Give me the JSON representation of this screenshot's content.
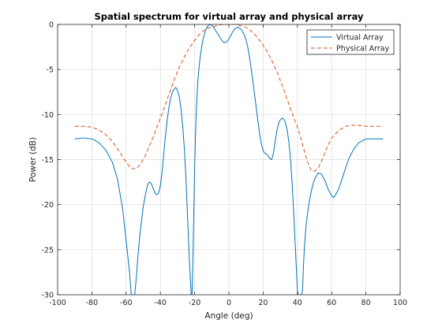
{
  "chart_data": {
    "type": "line",
    "title": "Spatial spectrum for virtual array and physical array",
    "xlabel": "Angle (deg)",
    "ylabel": "Power (dB)",
    "xlim": [
      -100,
      100
    ],
    "ylim": [
      -30,
      0
    ],
    "xticks": [
      -100,
      -80,
      -60,
      -40,
      -20,
      0,
      20,
      40,
      60,
      80,
      100
    ],
    "xtick_labels": [
      "-100",
      "-80",
      "-60",
      "-40",
      "-20",
      "0",
      "20",
      "40",
      "60",
      "80",
      "100"
    ],
    "yticks": [
      -30,
      -25,
      -20,
      -15,
      -10,
      -5,
      0
    ],
    "ytick_labels": [
      "-30",
      "-25",
      "-20",
      "-15",
      "-10",
      "-5",
      "0"
    ],
    "grid": true,
    "legend_position": "top-right",
    "series": [
      {
        "name": "Virtual Array",
        "color": "#0072bd",
        "style": "solid",
        "x": [
          -90,
          -85,
          -80,
          -76,
          -72,
          -68,
          -65,
          -62,
          -60,
          -58,
          -57,
          -56.5,
          -55.5,
          -55,
          -54,
          -53,
          -52,
          -50,
          -48,
          -47,
          -46,
          -45,
          -44,
          -43,
          -42,
          -41,
          -40,
          -39,
          -38,
          -37,
          -36,
          -35,
          -34,
          -33,
          -32,
          -31,
          -30,
          -29,
          -28,
          -27,
          -26,
          -25,
          -24,
          -23,
          -22,
          -21.5,
          -21,
          -20.5,
          -20,
          -19.5,
          -19,
          -18.5,
          -18,
          -17,
          -16,
          -15,
          -14,
          -13,
          -12,
          -11,
          -10,
          -9,
          -8,
          -7,
          -6,
          -5,
          -4,
          -3,
          -2,
          -1,
          0,
          1,
          2,
          3,
          4,
          5,
          6,
          7,
          8,
          9,
          10,
          11,
          12,
          13,
          14,
          15,
          16,
          17,
          18,
          19,
          20,
          21,
          22,
          23,
          24,
          25,
          26,
          27,
          28,
          29,
          30,
          31,
          32,
          33,
          34,
          35,
          36,
          37,
          38,
          39,
          40,
          40.5,
          41,
          41.5,
          42,
          42.5,
          43,
          43.5,
          44,
          45,
          46,
          47,
          48,
          49,
          50,
          52,
          54,
          56,
          58,
          60,
          61,
          62,
          64,
          66,
          68,
          70,
          73,
          76,
          80,
          85,
          90
        ],
        "y": [
          -12.7,
          -12.6,
          -12.7,
          -13.1,
          -13.9,
          -15.3,
          -17.2,
          -20.5,
          -24,
          -27.5,
          -30,
          -30,
          -30,
          -30,
          -28,
          -25.5,
          -23.4,
          -20.2,
          -18.2,
          -17.6,
          -17.5,
          -17.8,
          -18.3,
          -18.8,
          -18.9,
          -18.7,
          -17.9,
          -16.4,
          -14.3,
          -12.3,
          -10.6,
          -9.2,
          -8.2,
          -7.5,
          -7.2,
          -7.0,
          -7.3,
          -8.0,
          -9.3,
          -11.2,
          -13.8,
          -17.3,
          -22.0,
          -26.5,
          -30,
          -30,
          -26,
          -21,
          -16,
          -12.2,
          -9.4,
          -7.5,
          -6.0,
          -4.0,
          -2.6,
          -1.6,
          -0.9,
          -0.4,
          -0.1,
          0.0,
          -0.1,
          -0.3,
          -0.6,
          -0.9,
          -1.2,
          -1.5,
          -1.8,
          -2.0,
          -2.0,
          -1.9,
          -1.6,
          -1.3,
          -0.9,
          -0.6,
          -0.4,
          -0.3,
          -0.4,
          -0.5,
          -0.8,
          -1.2,
          -1.7,
          -2.5,
          -3.6,
          -4.9,
          -6.3,
          -7.8,
          -9.3,
          -10.8,
          -12.2,
          -13.3,
          -14.0,
          -14.3,
          -14.4,
          -14.6,
          -14.9,
          -15.0,
          -14.3,
          -13.0,
          -11.8,
          -11.0,
          -10.6,
          -10.4,
          -10.5,
          -10.9,
          -11.7,
          -13.0,
          -15.0,
          -17.8,
          -21.5,
          -25.5,
          -29.5,
          -30,
          -30,
          -30,
          -30,
          -30,
          -29.5,
          -27.0,
          -25.0,
          -22.5,
          -20.8,
          -19.6,
          -18.6,
          -17.8,
          -17.2,
          -16.5,
          -16.6,
          -17.3,
          -18.3,
          -19.0,
          -19.2,
          -19.0,
          -18.3,
          -17.2,
          -16.0,
          -14.9,
          -13.8,
          -13.1,
          -12.7,
          -12.7,
          -12.7
        ]
      },
      {
        "name": "Physical Array",
        "color": "#d95319",
        "style": "dashed",
        "x": [
          -90,
          -85,
          -80,
          -76,
          -72,
          -68,
          -64,
          -60,
          -57,
          -54,
          -52,
          -50,
          -48,
          -46,
          -44,
          -42,
          -40,
          -38,
          -36,
          -34,
          -32,
          -30,
          -28,
          -26,
          -24,
          -22,
          -20,
          -18,
          -16,
          -14,
          -12,
          -10,
          -8,
          -6,
          -4,
          -2,
          0,
          2,
          4,
          6,
          8,
          10,
          12,
          14,
          16,
          18,
          20,
          22,
          24,
          26,
          28,
          30,
          32,
          34,
          36,
          38,
          40,
          42,
          44,
          46,
          48,
          50,
          52,
          54,
          57,
          60,
          64,
          68,
          72,
          76,
          80,
          85,
          90
        ],
        "y": [
          -11.3,
          -11.3,
          -11.4,
          -11.7,
          -12.2,
          -13.0,
          -14.1,
          -15.3,
          -16.0,
          -16.0,
          -15.6,
          -15.0,
          -14.2,
          -13.3,
          -12.4,
          -11.4,
          -10.4,
          -9.4,
          -8.3,
          -7.2,
          -6.2,
          -5.2,
          -4.4,
          -3.6,
          -2.9,
          -2.3,
          -1.8,
          -1.3,
          -0.9,
          -0.6,
          -0.4,
          -0.3,
          -0.2,
          -0.1,
          0.0,
          0.0,
          0.0,
          0.0,
          0.0,
          -0.1,
          -0.2,
          -0.3,
          -0.6,
          -0.9,
          -1.3,
          -1.8,
          -2.3,
          -2.9,
          -3.6,
          -4.4,
          -5.2,
          -6.2,
          -7.2,
          -8.3,
          -9.4,
          -10.4,
          -11.4,
          -12.6,
          -14.0,
          -15.3,
          -16.2,
          -16.3,
          -16.0,
          -15.2,
          -13.8,
          -12.6,
          -11.8,
          -11.3,
          -11.2,
          -11.2,
          -11.3,
          -11.3,
          -11.3
        ]
      }
    ]
  }
}
